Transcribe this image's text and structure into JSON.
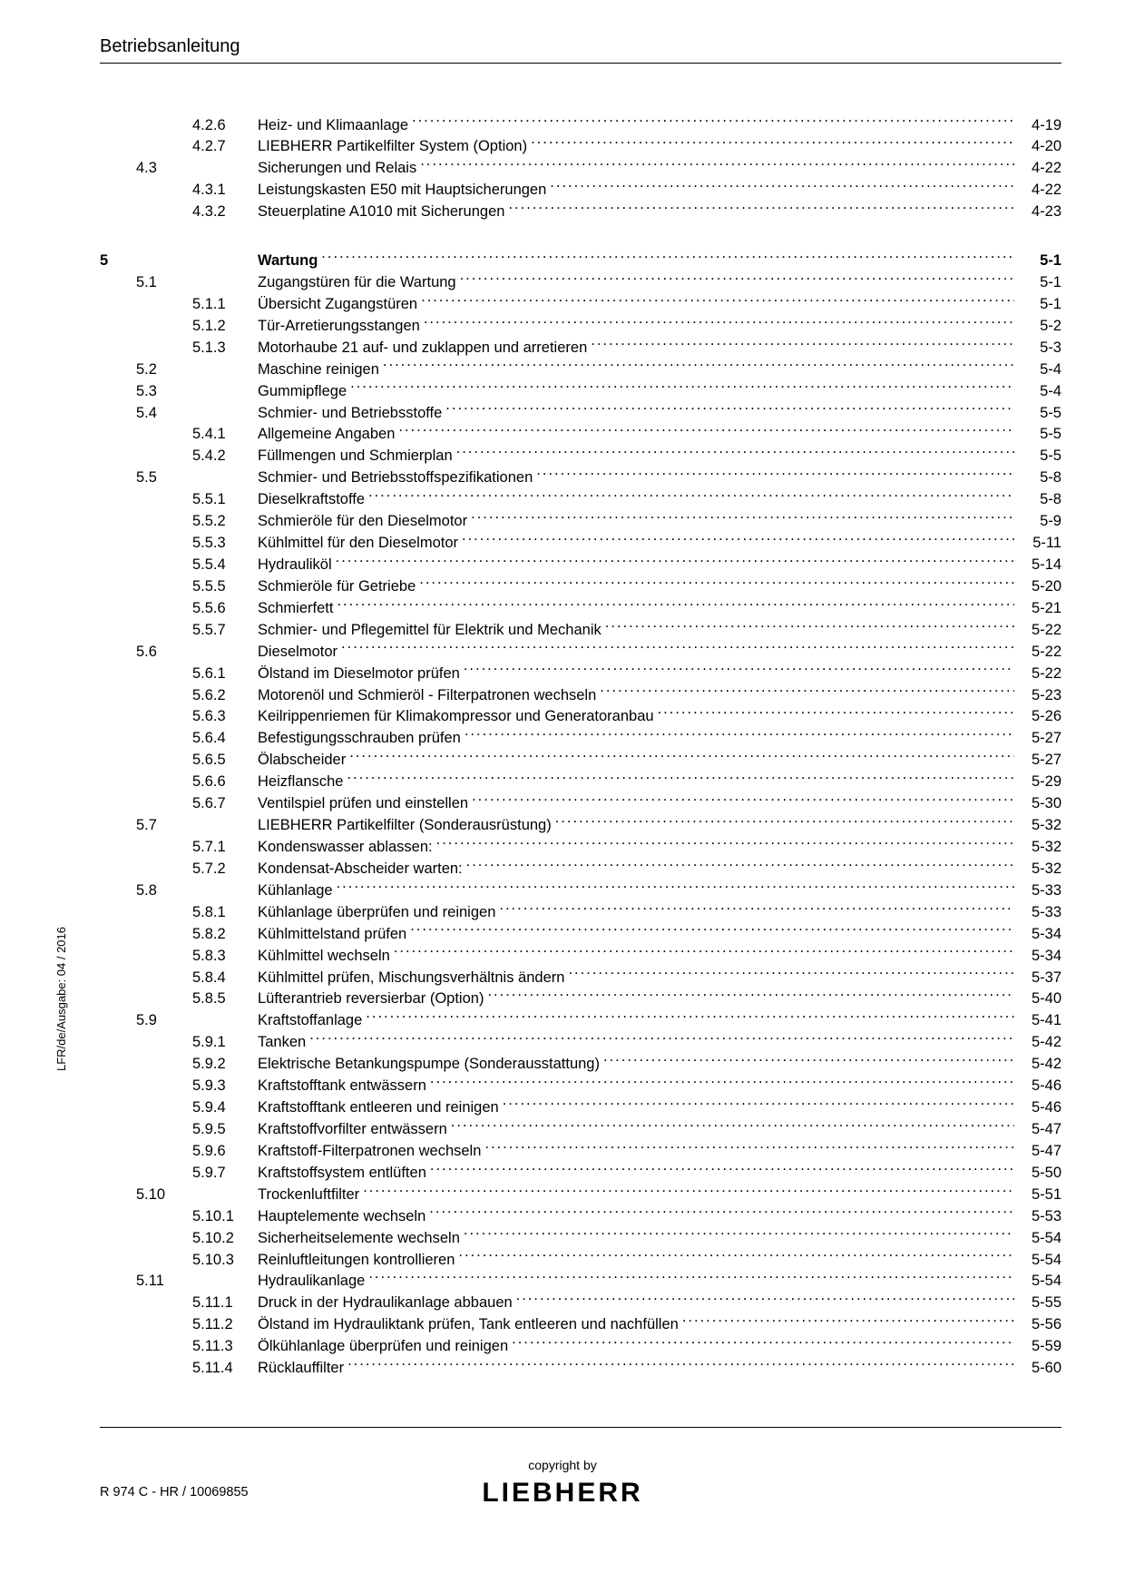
{
  "header": {
    "title": "Betriebsanleitung"
  },
  "side_label": "LFR/de/Ausgabe: 04 / 2016",
  "footer": {
    "copyright": "copyright by",
    "brand": "LIEBHERR",
    "docref": "R 974 C - HR / 10069855"
  },
  "toc": [
    {
      "ch": "",
      "sec": "",
      "sub": "4.2.6",
      "title": "Heiz- und Klimaanlage",
      "page": "4-19"
    },
    {
      "ch": "",
      "sec": "",
      "sub": "4.2.7",
      "title": "LIEBHERR Partikelfilter System (Option)",
      "page": "4-20"
    },
    {
      "ch": "",
      "sec": "4.3",
      "sub": "",
      "title": "Sicherungen und Relais",
      "page": "4-22"
    },
    {
      "ch": "",
      "sec": "",
      "sub": "4.3.1",
      "title": "Leistungskasten E50 mit Hauptsicherungen",
      "page": "4-22"
    },
    {
      "ch": "",
      "sec": "",
      "sub": "4.3.2",
      "title": "Steuerplatine A1010 mit Sicherungen",
      "page": "4-23"
    },
    {
      "gap": true
    },
    {
      "ch": "5",
      "sec": "",
      "sub": "",
      "title": "Wartung",
      "page": "5-1",
      "bold": true
    },
    {
      "ch": "",
      "sec": "5.1",
      "sub": "",
      "title": "Zugangstüren für die Wartung",
      "page": "5-1"
    },
    {
      "ch": "",
      "sec": "",
      "sub": "5.1.1",
      "title": "Übersicht Zugangstüren",
      "page": "5-1"
    },
    {
      "ch": "",
      "sec": "",
      "sub": "5.1.2",
      "title": "Tür-Arretierungsstangen",
      "page": "5-2"
    },
    {
      "ch": "",
      "sec": "",
      "sub": "5.1.3",
      "title": "Motorhaube 21 auf- und zuklappen und arretieren",
      "page": "5-3"
    },
    {
      "ch": "",
      "sec": "5.2",
      "sub": "",
      "title": "Maschine reinigen",
      "page": "5-4"
    },
    {
      "ch": "",
      "sec": "5.3",
      "sub": "",
      "title": "Gummipflege",
      "page": "5-4"
    },
    {
      "ch": "",
      "sec": "5.4",
      "sub": "",
      "title": "Schmier- und Betriebsstoffe",
      "page": "5-5"
    },
    {
      "ch": "",
      "sec": "",
      "sub": "5.4.1",
      "title": "Allgemeine Angaben",
      "page": "5-5"
    },
    {
      "ch": "",
      "sec": "",
      "sub": "5.4.2",
      "title": "Füllmengen und Schmierplan",
      "page": "5-5"
    },
    {
      "ch": "",
      "sec": "5.5",
      "sub": "",
      "title": "Schmier- und Betriebsstoffspezifikationen",
      "page": "5-8"
    },
    {
      "ch": "",
      "sec": "",
      "sub": "5.5.1",
      "title": "Dieselkraftstoffe",
      "page": "5-8"
    },
    {
      "ch": "",
      "sec": "",
      "sub": "5.5.2",
      "title": "Schmieröle für den Dieselmotor",
      "page": "5-9"
    },
    {
      "ch": "",
      "sec": "",
      "sub": "5.5.3",
      "title": "Kühlmittel für den Dieselmotor",
      "page": "5-11"
    },
    {
      "ch": "",
      "sec": "",
      "sub": "5.5.4",
      "title": "Hydrauliköl",
      "page": "5-14"
    },
    {
      "ch": "",
      "sec": "",
      "sub": "5.5.5",
      "title": "Schmieröle für Getriebe",
      "page": "5-20"
    },
    {
      "ch": "",
      "sec": "",
      "sub": "5.5.6",
      "title": "Schmierfett",
      "page": "5-21"
    },
    {
      "ch": "",
      "sec": "",
      "sub": "5.5.7",
      "title": "Schmier- und Pflegemittel für Elektrik und Mechanik",
      "page": "5-22"
    },
    {
      "ch": "",
      "sec": "5.6",
      "sub": "",
      "title": "Dieselmotor",
      "page": "5-22"
    },
    {
      "ch": "",
      "sec": "",
      "sub": "5.6.1",
      "title": "Ölstand im Dieselmotor prüfen",
      "page": "5-22"
    },
    {
      "ch": "",
      "sec": "",
      "sub": "5.6.2",
      "title": "Motorenöl und Schmieröl - Filterpatronen wechseln",
      "page": "5-23"
    },
    {
      "ch": "",
      "sec": "",
      "sub": "5.6.3",
      "title": "Keilrippenriemen für Klimakompressor und Generatoranbau",
      "page": "5-26"
    },
    {
      "ch": "",
      "sec": "",
      "sub": "5.6.4",
      "title": "Befestigungsschrauben prüfen",
      "page": "5-27"
    },
    {
      "ch": "",
      "sec": "",
      "sub": "5.6.5",
      "title": "Ölabscheider",
      "page": "5-27"
    },
    {
      "ch": "",
      "sec": "",
      "sub": "5.6.6",
      "title": "Heizflansche",
      "page": "5-29"
    },
    {
      "ch": "",
      "sec": "",
      "sub": "5.6.7",
      "title": "Ventilspiel prüfen und einstellen",
      "page": "5-30"
    },
    {
      "ch": "",
      "sec": "5.7",
      "sub": "",
      "title": "LIEBHERR Partikelfilter (Sonderausrüstung)",
      "page": "5-32"
    },
    {
      "ch": "",
      "sec": "",
      "sub": "5.7.1",
      "title": "Kondenswasser ablassen:",
      "page": "5-32"
    },
    {
      "ch": "",
      "sec": "",
      "sub": "5.7.2",
      "title": "Kondensat-Abscheider warten:",
      "page": "5-32"
    },
    {
      "ch": "",
      "sec": "5.8",
      "sub": "",
      "title": "Kühlanlage",
      "page": "5-33"
    },
    {
      "ch": "",
      "sec": "",
      "sub": "5.8.1",
      "title": "Kühlanlage überprüfen und reinigen",
      "page": "5-33"
    },
    {
      "ch": "",
      "sec": "",
      "sub": "5.8.2",
      "title": "Kühlmittelstand prüfen",
      "page": "5-34"
    },
    {
      "ch": "",
      "sec": "",
      "sub": "5.8.3",
      "title": "Kühlmittel wechseln",
      "page": "5-34"
    },
    {
      "ch": "",
      "sec": "",
      "sub": "5.8.4",
      "title": "Kühlmittel prüfen, Mischungsverhältnis ändern",
      "page": "5-37"
    },
    {
      "ch": "",
      "sec": "",
      "sub": "5.8.5",
      "title": "Lüfterantrieb reversierbar (Option)",
      "page": "5-40"
    },
    {
      "ch": "",
      "sec": "5.9",
      "sub": "",
      "title": "Kraftstoffanlage",
      "page": "5-41"
    },
    {
      "ch": "",
      "sec": "",
      "sub": "5.9.1",
      "title": "Tanken",
      "page": "5-42"
    },
    {
      "ch": "",
      "sec": "",
      "sub": "5.9.2",
      "title": "Elektrische Betankungspumpe (Sonderausstattung)",
      "page": "5-42"
    },
    {
      "ch": "",
      "sec": "",
      "sub": "5.9.3",
      "title": "Kraftstofftank entwässern",
      "page": "5-46"
    },
    {
      "ch": "",
      "sec": "",
      "sub": "5.9.4",
      "title": "Kraftstofftank entleeren und reinigen",
      "page": "5-46"
    },
    {
      "ch": "",
      "sec": "",
      "sub": "5.9.5",
      "title": "Kraftstoffvorfilter entwässern",
      "page": "5-47"
    },
    {
      "ch": "",
      "sec": "",
      "sub": "5.9.6",
      "title": "Kraftstoff-Filterpatronen wechseln",
      "page": "5-47"
    },
    {
      "ch": "",
      "sec": "",
      "sub": "5.9.7",
      "title": "Kraftstoffsystem entlüften",
      "page": "5-50"
    },
    {
      "ch": "",
      "sec": "5.10",
      "sub": "",
      "title": "Trockenluftfilter",
      "page": "5-51"
    },
    {
      "ch": "",
      "sec": "",
      "sub": "5.10.1",
      "title": "Hauptelemente wechseln",
      "page": "5-53"
    },
    {
      "ch": "",
      "sec": "",
      "sub": "5.10.2",
      "title": "Sicherheitselemente wechseln",
      "page": "5-54"
    },
    {
      "ch": "",
      "sec": "",
      "sub": "5.10.3",
      "title": "Reinluftleitungen kontrollieren",
      "page": "5-54"
    },
    {
      "ch": "",
      "sec": "5.11",
      "sub": "",
      "title": "Hydraulikanlage",
      "page": "5-54"
    },
    {
      "ch": "",
      "sec": "",
      "sub": "5.11.1",
      "title": "Druck in der Hydraulikanlage abbauen",
      "page": "5-55"
    },
    {
      "ch": "",
      "sec": "",
      "sub": "5.11.2",
      "title": "Ölstand im Hydrauliktank prüfen, Tank entleeren und nachfüllen",
      "page": "5-56"
    },
    {
      "ch": "",
      "sec": "",
      "sub": "5.11.3",
      "title": "Ölkühlanlage überprüfen und reinigen",
      "page": "5-59"
    },
    {
      "ch": "",
      "sec": "",
      "sub": "5.11.4",
      "title": "Rücklauffilter",
      "page": "5-60"
    }
  ]
}
